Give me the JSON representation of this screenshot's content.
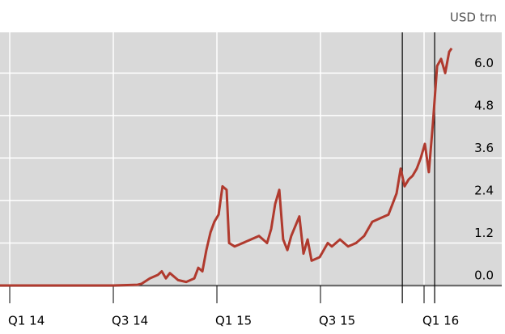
{
  "chart_data": {
    "type": "line",
    "ylabel": "USD trn",
    "x": [
      2013.953,
      2014.5,
      2014.617,
      2014.637,
      2014.676,
      2014.715,
      2014.734,
      2014.754,
      2014.773,
      2014.813,
      2014.852,
      2014.891,
      2014.91,
      2014.93,
      2014.949,
      2014.969,
      2014.988,
      2015.008,
      2015.027,
      2015.047,
      2015.059,
      2015.086,
      2015.125,
      2015.164,
      2015.203,
      2015.242,
      2015.262,
      2015.281,
      2015.301,
      2015.32,
      2015.34,
      2015.359,
      2015.398,
      2015.418,
      2015.438,
      2015.457,
      2015.496,
      2015.535,
      2015.555,
      2015.594,
      2015.633,
      2015.672,
      2015.711,
      2015.75,
      2015.789,
      2015.828,
      2015.867,
      2015.887,
      2015.906,
      2015.926,
      2015.945,
      2015.965,
      2015.984,
      2016.004,
      2016.023,
      2016.043,
      2016.063,
      2016.082,
      2016.102,
      2016.121,
      2016.133
    ],
    "series": [
      {
        "color": "#b03a2e",
        "values": [
          0,
          0,
          0.02,
          0.05,
          0.2,
          0.3,
          0.4,
          0.2,
          0.35,
          0.15,
          0.1,
          0.2,
          0.5,
          0.4,
          1.0,
          1.5,
          1.8,
          2.0,
          2.8,
          2.7,
          1.2,
          1.1,
          1.2,
          1.3,
          1.4,
          1.2,
          1.6,
          2.3,
          2.7,
          1.3,
          1.0,
          1.4,
          1.95,
          0.9,
          1.3,
          0.7,
          0.8,
          1.2,
          1.1,
          1.3,
          1.1,
          1.2,
          1.4,
          1.8,
          1.9,
          2.0,
          2.6,
          3.3,
          2.8,
          3.0,
          3.1,
          3.3,
          3.6,
          4.0,
          3.2,
          4.6,
          6.2,
          6.4,
          6.0,
          6.6,
          6.7
        ]
      }
    ],
    "xlim": [
      2013.953,
      2016.375
    ],
    "xticks": [
      {
        "value": 2014,
        "label": "Q1 14"
      },
      {
        "value": 2014.5,
        "label": "Q3 14"
      },
      {
        "value": 2015,
        "label": "Q1 15"
      },
      {
        "value": 2015.5,
        "label": "Q3 15"
      },
      {
        "value": 2016,
        "label": "Q1 16"
      }
    ],
    "ylim": [
      0,
      7.15
    ],
    "yticks": [
      {
        "value": 0,
        "label": "0.0"
      },
      1.2,
      2.4,
      3.6,
      4.8,
      {
        "value": 6,
        "label": "6.0"
      }
    ],
    "vlines": [
      2015.895,
      2016.051
    ],
    "grid": true
  }
}
